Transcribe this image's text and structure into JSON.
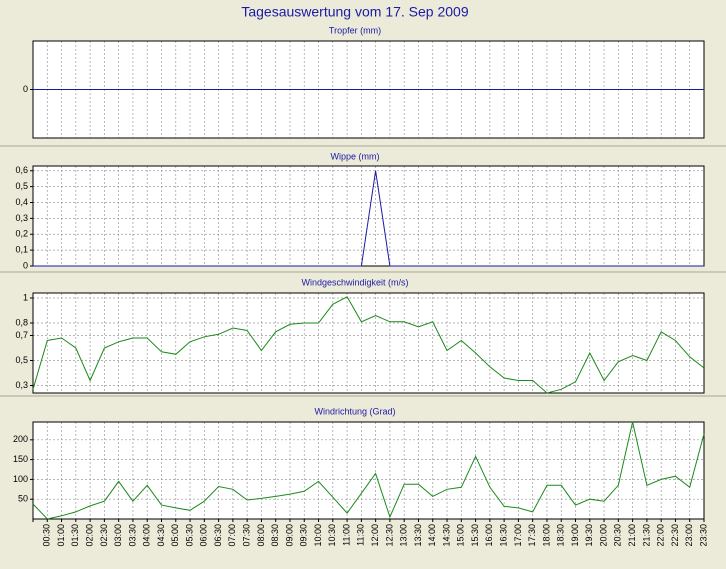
{
  "page_title": "Tagesauswertung vom 17. Sep 2009",
  "colors": {
    "background": "#ecead8",
    "plot_background": "#ffffff",
    "title_text": "#1a1aa8",
    "panel_title_text": "#1a1aa8",
    "grid": "#9a9a9a",
    "tropfer_line": "#1a1aa8",
    "wippe_line": "#1a1aa8",
    "wind_speed_line": "#1b8a1b",
    "wind_direction_line": "#1b8a1b",
    "separator": "#a8a898"
  },
  "x_tick_labels": [
    "00:30",
    "01:00",
    "01:30",
    "02:00",
    "02:30",
    "03:00",
    "03:30",
    "04:00",
    "04:30",
    "05:00",
    "05:30",
    "06:00",
    "06:30",
    "07:00",
    "07:30",
    "08:00",
    "08:30",
    "09:00",
    "09:30",
    "10:00",
    "10:30",
    "11:00",
    "11:30",
    "12:00",
    "12:30",
    "13:00",
    "13:30",
    "14:00",
    "14:30",
    "15:00",
    "15:30",
    "16:00",
    "16:30",
    "17:00",
    "17:30",
    "18:00",
    "18:30",
    "19:00",
    "19:30",
    "20:00",
    "20:30",
    "21:00",
    "21:30",
    "22:00",
    "22:30",
    "23:00",
    "23:30"
  ],
  "chart_data": [
    {
      "type": "line",
      "title": "Tropfer (mm)",
      "y_ticks": [
        "0"
      ],
      "ylim": [
        -1,
        1
      ],
      "grid": true,
      "series": [
        {
          "values": [
            0,
            0,
            0,
            0,
            0,
            0,
            0,
            0,
            0,
            0,
            0,
            0,
            0,
            0,
            0,
            0,
            0,
            0,
            0,
            0,
            0,
            0,
            0,
            0,
            0,
            0,
            0,
            0,
            0,
            0,
            0,
            0,
            0,
            0,
            0,
            0,
            0,
            0,
            0,
            0,
            0,
            0,
            0,
            0,
            0,
            0,
            0,
            0
          ]
        }
      ]
    },
    {
      "type": "line",
      "title": "Wippe (mm)",
      "y_ticks": [
        "0",
        "0,1",
        "0,2",
        "0,3",
        "0,4",
        "0,5",
        "0,6"
      ],
      "ylim": [
        0,
        0.63
      ],
      "grid": true,
      "series": [
        {
          "values": [
            0,
            0,
            0,
            0,
            0,
            0,
            0,
            0,
            0,
            0,
            0,
            0,
            0,
            0,
            0,
            0,
            0,
            0,
            0,
            0,
            0,
            0,
            0,
            0,
            0.6,
            0,
            0,
            0,
            0,
            0,
            0,
            0,
            0,
            0,
            0,
            0,
            0,
            0,
            0,
            0,
            0,
            0,
            0,
            0,
            0,
            0,
            0,
            0
          ]
        }
      ]
    },
    {
      "type": "line",
      "title": "Windgeschwindigkeit (m/s)",
      "y_ticks": [
        "0,3",
        "0,5",
        "0,7",
        "0,8",
        "1"
      ],
      "ylim": [
        0.24,
        1.04
      ],
      "grid": true,
      "series": [
        {
          "values": [
            0.27,
            0.66,
            0.68,
            0.6,
            0.34,
            0.6,
            0.65,
            0.68,
            0.68,
            0.57,
            0.55,
            0.65,
            0.69,
            0.71,
            0.76,
            0.74,
            0.58,
            0.73,
            0.79,
            0.8,
            0.8,
            0.95,
            1.01,
            0.81,
            0.86,
            0.81,
            0.81,
            0.77,
            0.81,
            0.58,
            0.66,
            0.56,
            0.45,
            0.36,
            0.34,
            0.34,
            0.24,
            0.27,
            0.33,
            0.56,
            0.34,
            0.49,
            0.54,
            0.5,
            0.73,
            0.66,
            0.53,
            0.44
          ]
        }
      ]
    },
    {
      "type": "line",
      "title": "Windrichtung (Grad)",
      "y_ticks": [
        "50",
        "100",
        "150",
        "200"
      ],
      "ylim": [
        0,
        245
      ],
      "grid": true,
      "series": [
        {
          "values": [
            38,
            0,
            8,
            18,
            33,
            45,
            95,
            45,
            85,
            35,
            28,
            22,
            45,
            82,
            75,
            48,
            52,
            57,
            63,
            70,
            95,
            55,
            15,
            65,
            115,
            5,
            88,
            88,
            57,
            75,
            80,
            158,
            80,
            32,
            28,
            18,
            85,
            85,
            35,
            50,
            45,
            85,
            245,
            85,
            100,
            108,
            80,
            215
          ]
        }
      ]
    }
  ]
}
